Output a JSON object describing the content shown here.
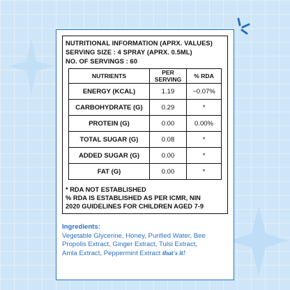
{
  "header": {
    "line1": "NUTRITIONAL INFORMATION (APRX. VALUES)",
    "line2": "SERVING SIZE : 4 SPRAY (APRX. 0.5ML)",
    "line3": "NO. OF SERVINGS : 60"
  },
  "table": {
    "columns": [
      "NUTRIENTS",
      "PER SERVING",
      "% RDA"
    ],
    "rows": [
      {
        "nutrient": "ENERGY (KCAL)",
        "per_serving": "1.19",
        "rda": "~0.07%"
      },
      {
        "nutrient": "CARBOHYDRATE (G)",
        "per_serving": "0.29",
        "rda": "*"
      },
      {
        "nutrient": "PROTEIN (G)",
        "per_serving": "0.00",
        "rda": "0.00%"
      },
      {
        "nutrient": "TOTAL SUGAR (G)",
        "per_serving": "0.08",
        "rda": "*"
      },
      {
        "nutrient": "ADDED SUGAR (G)",
        "per_serving": "0.00",
        "rda": "*"
      },
      {
        "nutrient": "FAT (G)",
        "per_serving": "0.00",
        "rda": "*"
      }
    ]
  },
  "footnotes": {
    "line1": "* RDA NOT ESTABLISHED",
    "line2": "% RDA IS ESTABLISHED AS PER ICMR, NIN",
    "line3": "2020 GUIDELINES FOR CHILDREN AGED 7-9"
  },
  "ingredients": {
    "heading": "Ingredients:",
    "line1": "Vegetable Glycerine, Honey, Purified Water, Bee",
    "line2": "Propolis Extract, Ginger Extract, Tulsi Extract,",
    "line3": "Amla Extract, Peppermint Extract",
    "tagline": "that's it!"
  },
  "colors": {
    "accent": "#2a6fc0",
    "background": "#cfe6f8"
  }
}
